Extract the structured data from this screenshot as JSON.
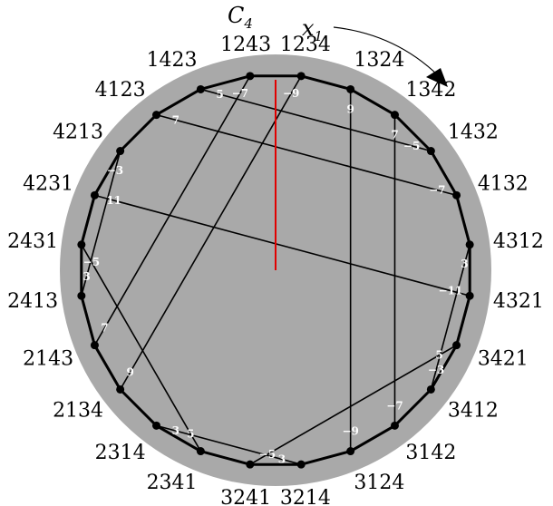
{
  "title": {
    "main": "C",
    "sub": "4"
  },
  "direction_label": {
    "main": "x",
    "sub": "1"
  },
  "colors": {
    "disk": "#a9a9a9",
    "edge": "#000000",
    "cut": "#e00000",
    "edge_label": "#ffffff"
  },
  "vertices": [
    "1234",
    "1324",
    "1342",
    "1432",
    "4132",
    "4312",
    "4321",
    "3421",
    "3412",
    "3142",
    "3124",
    "3214",
    "3241",
    "2341",
    "2314",
    "2134",
    "2143",
    "2413",
    "2431",
    "4231",
    "4213",
    "4123",
    "1423",
    "1243"
  ],
  "chords": [
    {
      "a": 1,
      "b": 10,
      "a_label": "9",
      "b_label": "−9"
    },
    {
      "a": 2,
      "b": 9,
      "a_label": "7",
      "b_label": "−7"
    },
    {
      "a": 22,
      "b": 3,
      "a_label": "5",
      "b_label": "−5"
    },
    {
      "a": 21,
      "b": 4,
      "a_label": "7",
      "b_label": "−7"
    },
    {
      "a": 19,
      "b": 6,
      "a_label": "11",
      "b_label": "−11"
    },
    {
      "a": 0,
      "b": 15,
      "a_label": "−9",
      "b_label": "9"
    },
    {
      "a": 23,
      "b": 16,
      "a_label": "−7",
      "b_label": "7"
    },
    {
      "a": 20,
      "b": 17,
      "a_label": "−3",
      "b_label": "3"
    },
    {
      "a": 18,
      "b": 13,
      "a_label": "−5",
      "b_label": "5"
    },
    {
      "a": 5,
      "b": 8,
      "a_label": "3",
      "b_label": "−3"
    },
    {
      "a": 7,
      "b": 12,
      "a_label": "5",
      "b_label": "−5"
    },
    {
      "a": 14,
      "b": 11,
      "a_label": "3",
      "b_label": "3"
    }
  ]
}
